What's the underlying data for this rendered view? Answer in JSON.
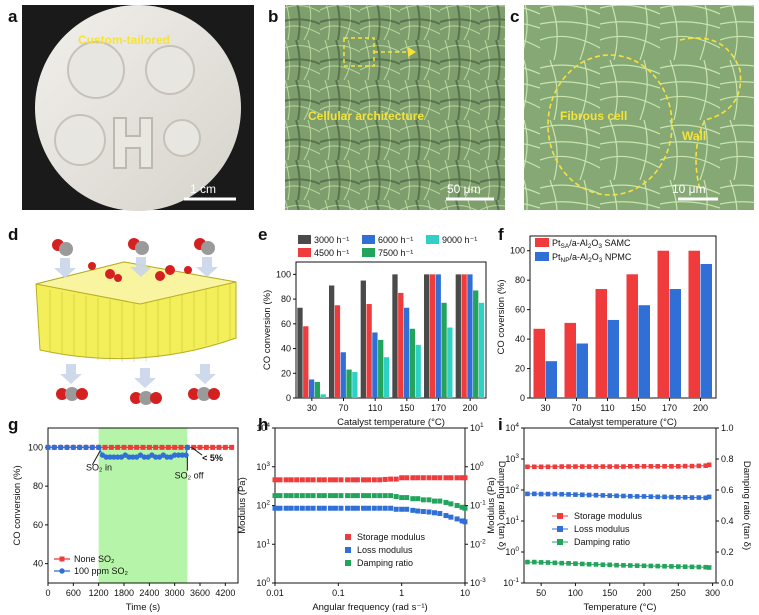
{
  "panel_labels": [
    "a",
    "b",
    "c",
    "d",
    "e",
    "f",
    "g",
    "h",
    "i"
  ],
  "images": {
    "a": {
      "caption": "Custom-tailored",
      "scale": "1 cm"
    },
    "b": {
      "caption": "Cellular architecture",
      "scale": "50 μm"
    },
    "c": {
      "caption1": "Fibrous cell",
      "caption2": "Wall",
      "scale": "10 μm"
    }
  },
  "colors": {
    "red": "#ef3b3b",
    "blue": "#2f6fd6",
    "green": "#22a45d",
    "gray": "#4a4a4a",
    "teal": "#2fd0c6",
    "highlight": "#b6f5a9",
    "microscopy": "#7f9e6e",
    "foam": "#f3ef5a"
  },
  "chart_data": [
    {
      "panel": "e",
      "type": "bar",
      "xlabel": "Catalyst temperature (°C)",
      "ylabel": "CO conversion (%)",
      "categories": [
        "30",
        "70",
        "110",
        "150",
        "170",
        "200"
      ],
      "ylim": [
        0,
        110
      ],
      "yticks": [
        "0",
        "20",
        "40",
        "60",
        "80",
        "100"
      ],
      "legend": "top",
      "series": [
        {
          "name": "3000 h⁻¹",
          "color": "#4a4a4a",
          "values": [
            73,
            91,
            95,
            100,
            100,
            100
          ]
        },
        {
          "name": "4500 h⁻¹",
          "color": "#ef3b3b",
          "values": [
            58,
            75,
            76,
            85,
            100,
            100
          ]
        },
        {
          "name": "6000 h⁻¹",
          "color": "#2f6fd6",
          "values": [
            15,
            37,
            53,
            73,
            100,
            100
          ]
        },
        {
          "name": "7500 h⁻¹",
          "color": "#22a45d",
          "values": [
            13,
            23,
            47,
            56,
            77,
            87
          ]
        },
        {
          "name": "9000 h⁻¹",
          "color": "#2fd0c6",
          "values": [
            3,
            21,
            33,
            43,
            57,
            77
          ]
        }
      ]
    },
    {
      "panel": "f",
      "type": "bar",
      "xlabel": "Catalyst temperature (°C)",
      "ylabel": "CO coversion (%)",
      "categories": [
        "30",
        "70",
        "110",
        "150",
        "170",
        "200"
      ],
      "ylim": [
        0,
        110
      ],
      "yticks": [
        "0",
        "20",
        "40",
        "60",
        "80",
        "100"
      ],
      "legend": "top-left",
      "series": [
        {
          "name_main": "Pt",
          "name_sub": "SA",
          "name_rest": "/a-Al",
          "name_sub2": "2",
          "name_rest2": "O",
          "name_sub3": "3",
          "name_tail": " SAMC",
          "color": "#ef3b3b",
          "values": [
            47,
            51,
            74,
            84,
            100,
            100
          ]
        },
        {
          "name_main": "Pt",
          "name_sub": "NP",
          "name_rest": "/a-Al",
          "name_sub2": "2",
          "name_rest2": "O",
          "name_sub3": "3",
          "name_tail": " NPMC",
          "color": "#2f6fd6",
          "values": [
            25,
            37,
            53,
            63,
            74,
            91
          ]
        }
      ]
    },
    {
      "panel": "g",
      "type": "line",
      "xlabel": "Time (s)",
      "ylabel": "CO conversion (%)",
      "xlim": [
        0,
        4500
      ],
      "ylim": [
        30,
        110
      ],
      "xticks": [
        "0",
        "600",
        "1200",
        "1800",
        "2400",
        "3000",
        "3600",
        "4200"
      ],
      "yticks": [
        "40",
        "60",
        "80",
        "100"
      ],
      "highlight_range": [
        1200,
        3300
      ],
      "legend": "bottom-left",
      "annotations": {
        "so2_in": "SO₂ in",
        "so2_off": "SO₂ off",
        "pct": "< 5%"
      },
      "series": [
        {
          "name": "None SO₂",
          "marker": "square",
          "color": "#ef3b3b",
          "x": [
            0,
            150,
            300,
            450,
            600,
            750,
            900,
            1050,
            1200,
            1350,
            1500,
            1650,
            1800,
            1950,
            2100,
            2250,
            2400,
            2550,
            2700,
            2850,
            3000,
            3150,
            3300,
            3450,
            3600,
            3750,
            3900,
            4050,
            4200,
            4350
          ],
          "y": [
            100,
            100,
            100,
            100,
            100,
            100,
            100,
            100,
            100,
            100,
            100,
            100,
            100,
            100,
            100,
            100,
            100,
            100,
            100,
            100,
            100,
            100,
            100,
            100,
            100,
            100,
            100,
            100,
            100,
            100
          ]
        },
        {
          "name": "100 ppm SO₂",
          "marker": "circle",
          "color": "#2f6fd6",
          "x": [
            0,
            150,
            300,
            450,
            600,
            750,
            900,
            1050,
            1200,
            1290,
            1380,
            1470,
            1560,
            1650,
            1740,
            1830,
            1920,
            2010,
            2100,
            2190,
            2280,
            2370,
            2460,
            2550,
            2640,
            2730,
            2820,
            2910,
            3000,
            3090,
            3180,
            3270,
            3300
          ],
          "y": [
            100,
            100,
            100,
            100,
            100,
            100,
            100,
            100,
            100,
            96,
            95,
            95,
            95,
            95,
            95,
            96,
            95,
            95,
            95,
            96,
            95,
            95,
            96,
            95,
            95,
            96,
            95,
            95,
            96,
            96,
            96,
            96,
            100
          ]
        }
      ]
    },
    {
      "panel": "h",
      "type": "scatter",
      "xlabel": "Angular frequency (rad s⁻¹)",
      "ylabel": "Modulus (Pa)",
      "y2label": "Damping ratio (tan δ)",
      "xscale": "log",
      "yscale": "log",
      "xlim": [
        0.01,
        10
      ],
      "ylim": [
        1,
        10000
      ],
      "y2lim": [
        0.001,
        10
      ],
      "xticks": [
        "0.01",
        "0.1",
        "1",
        "10"
      ],
      "legend": "bottom-right",
      "series": [
        {
          "name": "Storage modulus",
          "marker": "square",
          "color": "#ef3b3b",
          "axis": "left",
          "x": [
            0.01,
            0.012,
            0.015,
            0.018,
            0.022,
            0.027,
            0.033,
            0.04,
            0.05,
            0.06,
            0.075,
            0.09,
            0.11,
            0.14,
            0.17,
            0.2,
            0.25,
            0.3,
            0.37,
            0.45,
            0.55,
            0.67,
            0.82,
            1,
            1.2,
            1.5,
            1.8,
            2.2,
            2.7,
            3.3,
            4,
            5,
            6,
            7.5,
            9,
            10
          ],
          "y": [
            460,
            460,
            460,
            460,
            460,
            460,
            460,
            460,
            460,
            460,
            460,
            460,
            460,
            460,
            460,
            460,
            460,
            460,
            460,
            460,
            470,
            480,
            480,
            520,
            520,
            520,
            520,
            520,
            520,
            520,
            520,
            520,
            520,
            520,
            520,
            520
          ]
        },
        {
          "name": "Loss modulus",
          "marker": "square",
          "color": "#2f6fd6",
          "axis": "left",
          "x": [
            0.01,
            0.012,
            0.015,
            0.018,
            0.022,
            0.027,
            0.033,
            0.04,
            0.05,
            0.06,
            0.075,
            0.09,
            0.11,
            0.14,
            0.17,
            0.2,
            0.25,
            0.3,
            0.37,
            0.45,
            0.55,
            0.67,
            0.82,
            1,
            1.2,
            1.5,
            1.8,
            2.2,
            2.7,
            3.3,
            4,
            5,
            6,
            7.5,
            9,
            10
          ],
          "y": [
            85,
            85,
            85,
            85,
            85,
            85,
            85,
            85,
            85,
            85,
            85,
            85,
            85,
            85,
            85,
            85,
            85,
            85,
            85,
            85,
            85,
            85,
            80,
            80,
            80,
            75,
            72,
            70,
            68,
            65,
            62,
            55,
            50,
            45,
            40,
            38
          ]
        },
        {
          "name": "Damping ratio",
          "marker": "square",
          "color": "#22a45d",
          "axis": "right",
          "x": [
            0.01,
            0.012,
            0.015,
            0.018,
            0.022,
            0.027,
            0.033,
            0.04,
            0.05,
            0.06,
            0.075,
            0.09,
            0.11,
            0.14,
            0.17,
            0.2,
            0.25,
            0.3,
            0.37,
            0.45,
            0.55,
            0.67,
            0.82,
            1,
            1.2,
            1.5,
            1.8,
            2.2,
            2.7,
            3.3,
            4,
            5,
            6,
            7.5,
            9,
            10
          ],
          "y": [
            0.18,
            0.18,
            0.18,
            0.18,
            0.18,
            0.18,
            0.18,
            0.18,
            0.18,
            0.18,
            0.18,
            0.18,
            0.18,
            0.18,
            0.18,
            0.18,
            0.18,
            0.18,
            0.18,
            0.18,
            0.18,
            0.18,
            0.17,
            0.16,
            0.16,
            0.15,
            0.15,
            0.14,
            0.14,
            0.13,
            0.13,
            0.12,
            0.11,
            0.1,
            0.09,
            0.085
          ]
        }
      ]
    },
    {
      "panel": "i",
      "type": "scatter",
      "xlabel": "Temperature (°C)",
      "ylabel": "Modulus (Pa)",
      "y2label": "Damping ratio (tan δ)",
      "xlim": [
        25,
        305
      ],
      "ylim": [
        0.1,
        10000
      ],
      "yscale": "log",
      "y2lim": [
        0,
        1
      ],
      "xticks": [
        "50",
        "100",
        "150",
        "200",
        "250",
        "300"
      ],
      "y2ticks": [
        "0.0",
        "0.2",
        "0.4",
        "0.6",
        "0.8",
        "1.0"
      ],
      "legend": "center-left",
      "series": [
        {
          "name": "Storage modulus",
          "marker": "square",
          "color": "#ef3b3b",
          "axis": "left",
          "x": [
            30,
            40,
            50,
            60,
            70,
            80,
            90,
            100,
            110,
            120,
            130,
            140,
            150,
            160,
            170,
            180,
            190,
            200,
            210,
            220,
            230,
            240,
            250,
            260,
            270,
            280,
            290,
            295
          ],
          "y": [
            560,
            560,
            560,
            560,
            560,
            570,
            570,
            570,
            570,
            570,
            570,
            570,
            570,
            570,
            570,
            580,
            580,
            580,
            580,
            580,
            580,
            580,
            580,
            590,
            590,
            600,
            610,
            650
          ]
        },
        {
          "name": "Loss modulus",
          "marker": "square",
          "color": "#2f6fd6",
          "axis": "left",
          "x": [
            30,
            40,
            50,
            60,
            70,
            80,
            90,
            100,
            110,
            120,
            130,
            140,
            150,
            160,
            170,
            180,
            190,
            200,
            210,
            220,
            230,
            240,
            250,
            260,
            270,
            280,
            290,
            295
          ],
          "y": [
            75,
            75,
            74,
            74,
            74,
            73,
            72,
            71,
            70,
            69,
            68,
            67,
            66,
            65,
            64,
            63,
            62,
            62,
            61,
            60,
            60,
            59,
            58,
            58,
            57,
            57,
            56,
            60
          ]
        },
        {
          "name": "Damping ratio",
          "marker": "square",
          "color": "#22a45d",
          "axis": "right",
          "x": [
            30,
            40,
            50,
            60,
            70,
            80,
            90,
            100,
            110,
            120,
            130,
            140,
            150,
            160,
            170,
            180,
            190,
            200,
            210,
            220,
            230,
            240,
            250,
            260,
            270,
            280,
            290,
            295
          ],
          "y": [
            0.135,
            0.135,
            0.133,
            0.132,
            0.13,
            0.128,
            0.127,
            0.125,
            0.123,
            0.121,
            0.12,
            0.118,
            0.117,
            0.115,
            0.114,
            0.113,
            0.112,
            0.111,
            0.11,
            0.109,
            0.108,
            0.107,
            0.106,
            0.105,
            0.104,
            0.103,
            0.102,
            0.1
          ]
        }
      ]
    }
  ]
}
